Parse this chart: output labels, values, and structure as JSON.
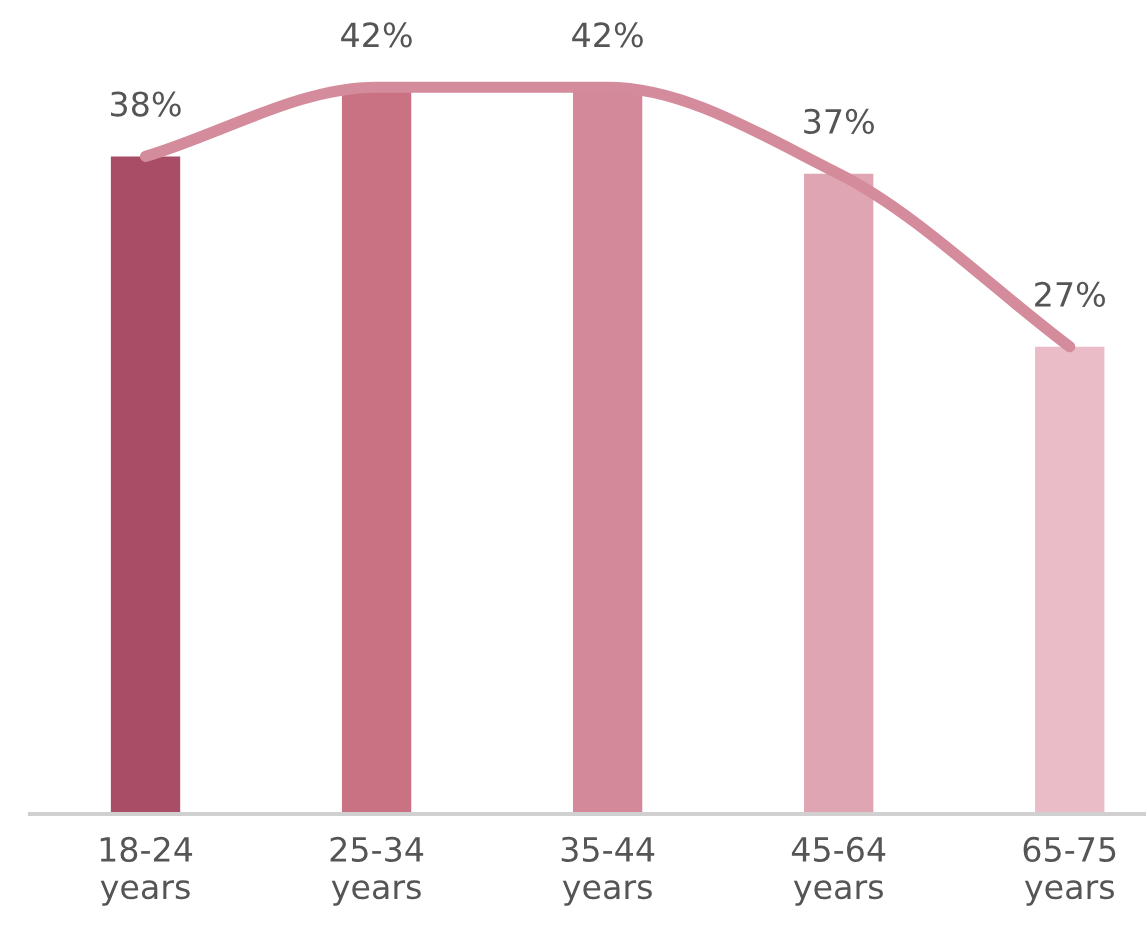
{
  "chart_data": {
    "type": "bar",
    "categories": [
      "18-24\nyears",
      "25-34\nyears",
      "35-44\nyears",
      "45-64\nyears",
      "65-75\nyears"
    ],
    "series": [
      {
        "values": [
          38,
          42,
          42,
          37,
          27
        ],
        "colors": [
          "#a84d65",
          "#c87284",
          "#d4899b",
          "#e0a5b2",
          "#e9bcc7"
        ],
        "value_labels": [
          "38%",
          "42%",
          "42%",
          "37%",
          "27%"
        ]
      },
      {
        "type": "line",
        "values": [
          38,
          42,
          42,
          37,
          27
        ],
        "color": "#d48b9c"
      }
    ],
    "tick_labels": "x"
  }
}
